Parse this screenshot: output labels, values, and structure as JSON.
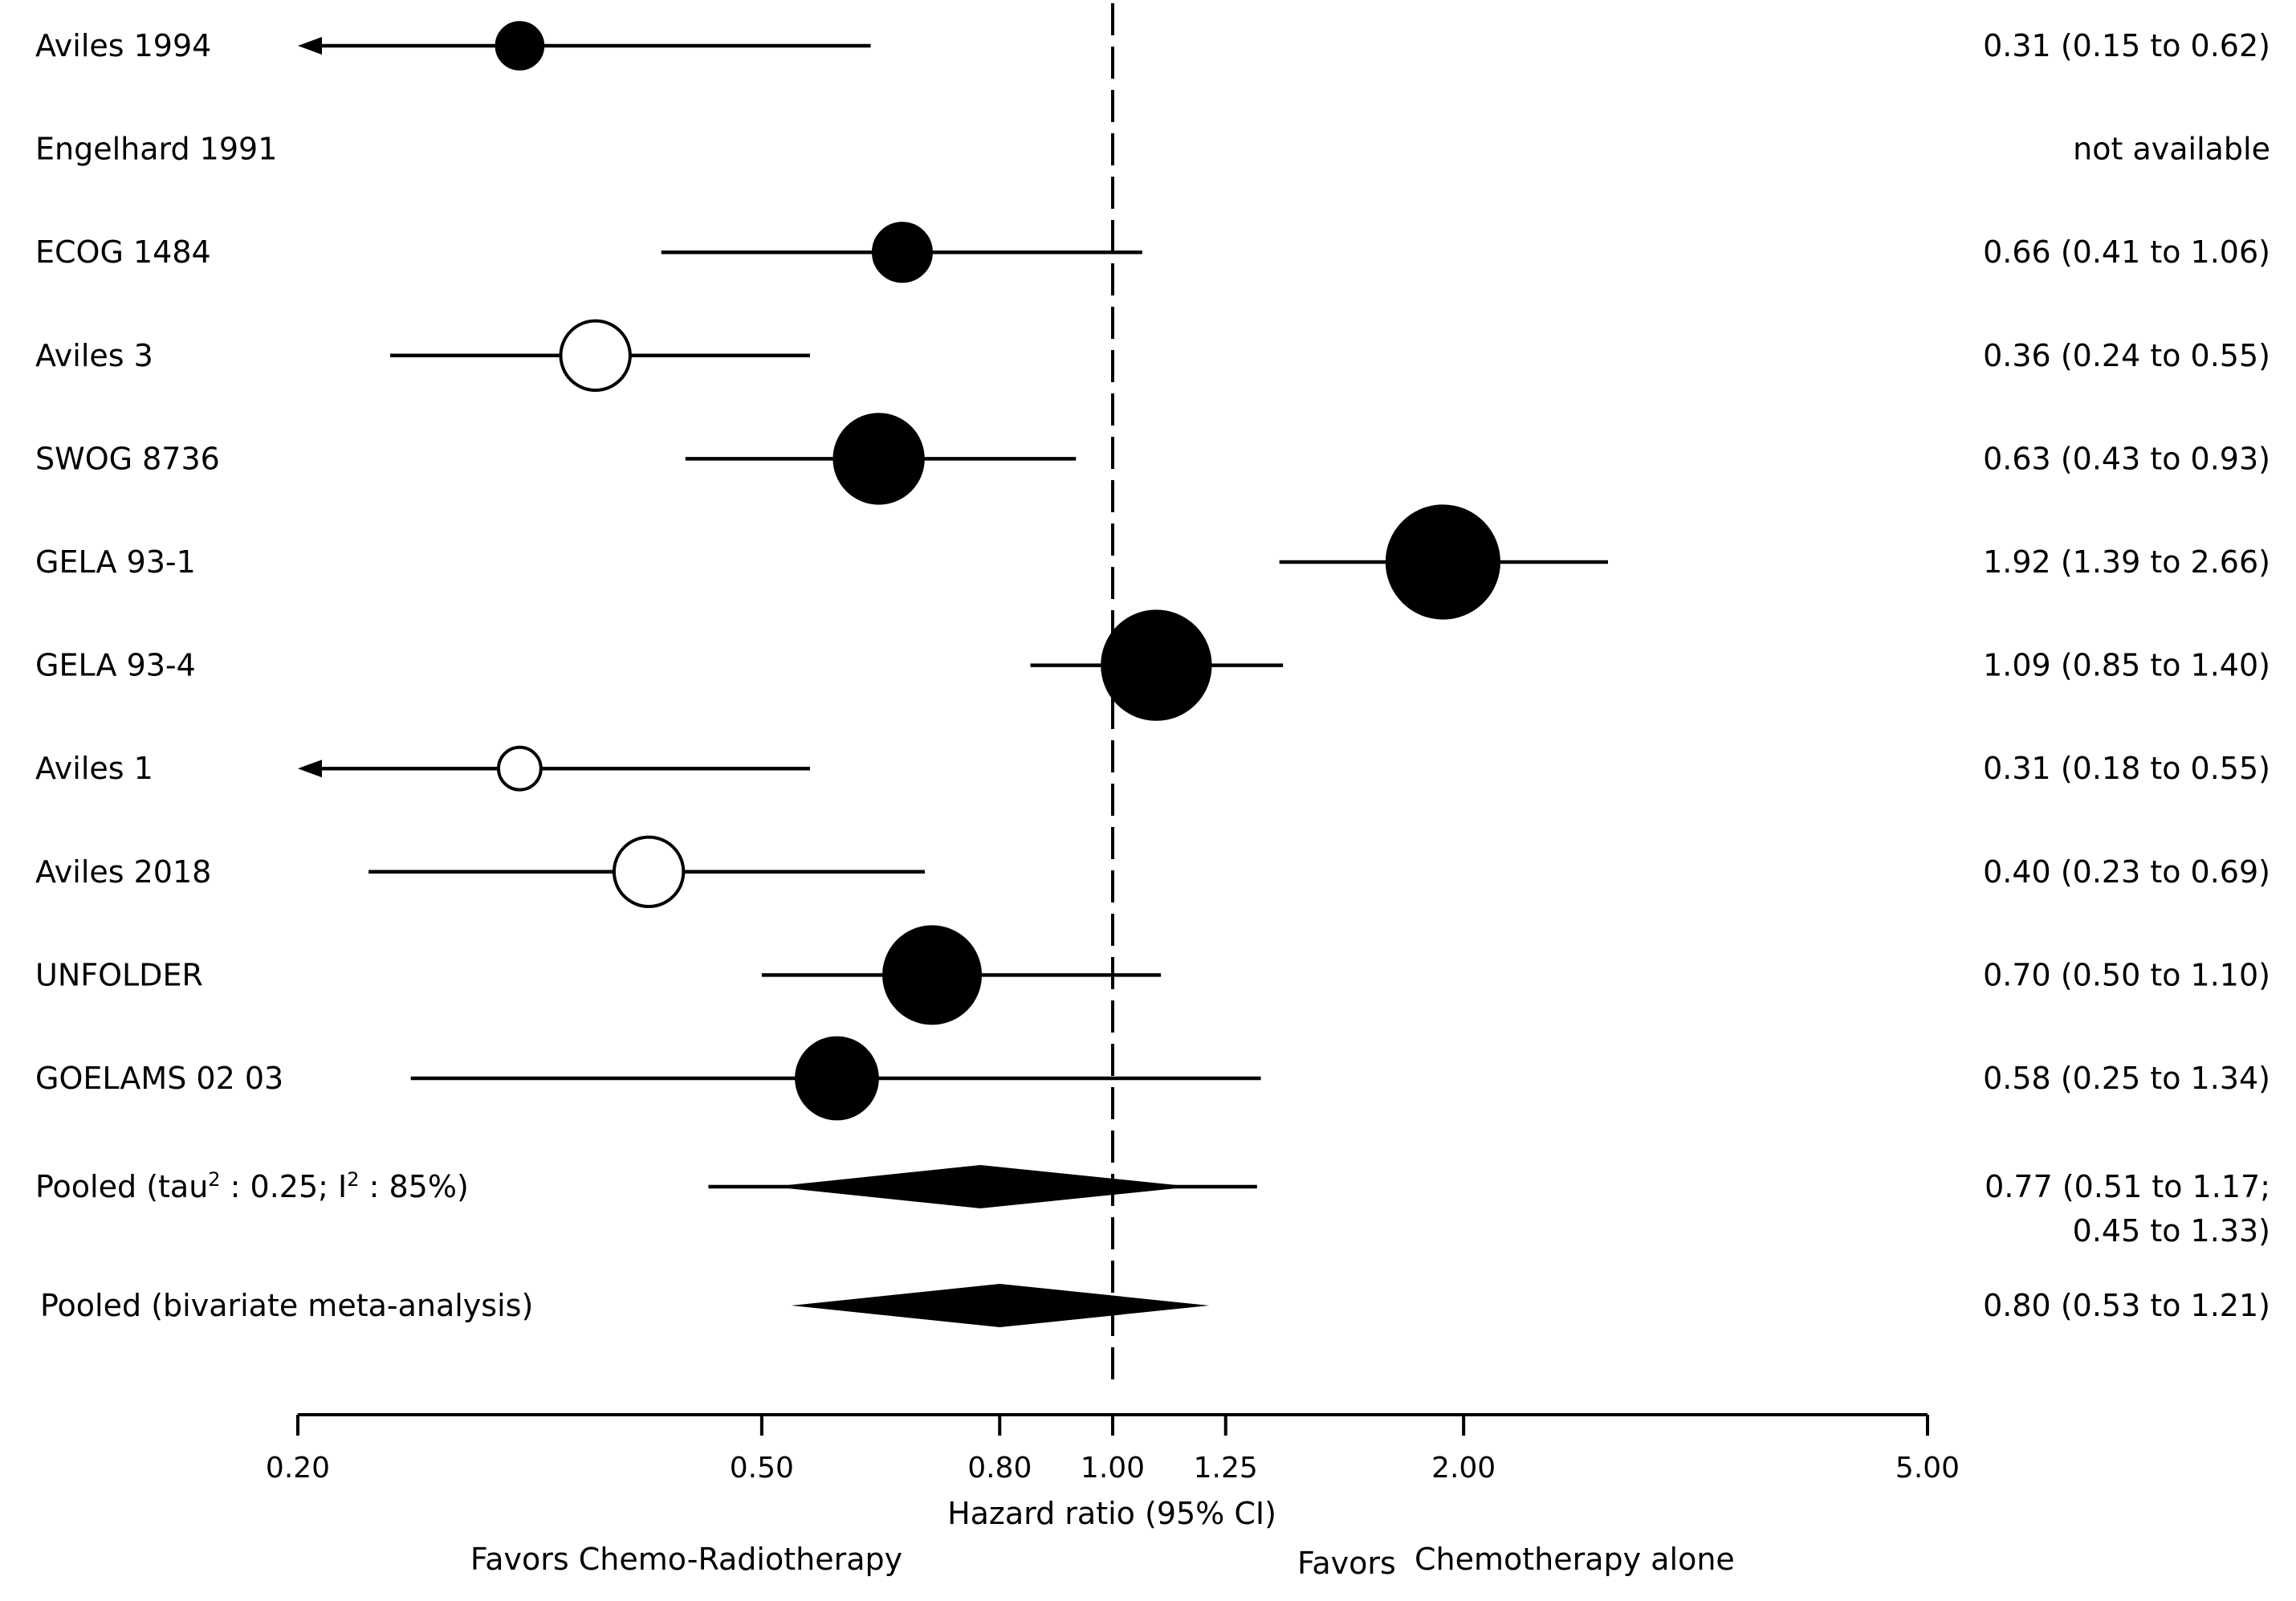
{
  "chart_data": {
    "type": "forest",
    "x_axis": {
      "scale": "log",
      "range": [
        0.2,
        5.0
      ],
      "ticks": [
        0.2,
        0.5,
        0.8,
        1.0,
        1.25,
        2.0,
        5.0
      ],
      "tick_labels": [
        "0.20",
        "0.50",
        "0.80",
        "1.00",
        "1.25",
        "2.00",
        "5.00"
      ],
      "title": "Hazard ratio (95% CI)",
      "reference_line": 1.0
    },
    "favors_left": "Favors Chemo-Radiotherapy",
    "favors_right_prefix": "Favors",
    "favors_right_suffix": "Chemotherapy alone",
    "studies": [
      {
        "name": "Aviles 1994",
        "hr": 0.31,
        "lo": 0.15,
        "hi": 0.62,
        "weight": 1.2,
        "filled": true,
        "arrow_left": true,
        "ci_text": "0.31 (0.15 to 0.62)"
      },
      {
        "name": "Engelhard 1991",
        "hr": null,
        "lo": null,
        "hi": null,
        "weight": 0,
        "filled": true,
        "arrow_left": false,
        "ci_text": "not available"
      },
      {
        "name": "ECOG 1484",
        "hr": 0.66,
        "lo": 0.41,
        "hi": 1.06,
        "weight": 1.5,
        "filled": true,
        "arrow_left": false,
        "ci_text": "0.66 (0.41 to 1.06)"
      },
      {
        "name": "Aviles 3",
        "hr": 0.36,
        "lo": 0.24,
        "hi": 0.55,
        "weight": 1.8,
        "filled": false,
        "arrow_left": false,
        "ci_text": "0.36 (0.24 to 0.55)"
      },
      {
        "name": "SWOG 8736",
        "hr": 0.63,
        "lo": 0.43,
        "hi": 0.93,
        "weight": 2.3,
        "filled": true,
        "arrow_left": false,
        "ci_text": "0.63 (0.43 to 0.93)"
      },
      {
        "name": "GELA 93-1",
        "hr": 1.92,
        "lo": 1.39,
        "hi": 2.66,
        "weight": 2.9,
        "filled": true,
        "arrow_left": false,
        "ci_text": "1.92 (1.39 to 2.66)"
      },
      {
        "name": "GELA 93-4",
        "hr": 1.09,
        "lo": 0.85,
        "hi": 1.4,
        "weight": 2.8,
        "filled": true,
        "arrow_left": false,
        "ci_text": "1.09 (0.85 to 1.40)"
      },
      {
        "name": "Aviles 1",
        "hr": 0.31,
        "lo": 0.18,
        "hi": 0.55,
        "weight": 1.1,
        "filled": false,
        "arrow_left": true,
        "ci_text": "0.31 (0.18 to 0.55)"
      },
      {
        "name": "Aviles 2018",
        "hr": 0.4,
        "lo": 0.23,
        "hi": 0.69,
        "weight": 1.8,
        "filled": false,
        "arrow_left": false,
        "ci_text": "0.40 (0.23 to 0.69)"
      },
      {
        "name": "UNFOLDER",
        "hr": 0.7,
        "lo": 0.5,
        "hi": 1.1,
        "weight": 2.5,
        "filled": true,
        "arrow_left": false,
        "ci_text": "0.70 (0.50 to 1.10)"
      },
      {
        "name": "GOELAMS 02 03",
        "hr": 0.58,
        "lo": 0.25,
        "hi": 1.34,
        "weight": 2.1,
        "filled": true,
        "arrow_left": false,
        "ci_text": "0.58 (0.25 to 1.34)"
      }
    ],
    "pooled": [
      {
        "name_prefix": "Pooled (tau",
        "sup1": "2",
        "name_mid": " : 0.25; I",
        "sup2": "2",
        "name_suffix": " : 85%)",
        "hr": 0.77,
        "lo": 0.51,
        "hi": 1.17,
        "pi_lo": 0.45,
        "pi_hi": 1.33,
        "ci_text_line1": "0.77 (0.51 to 1.17;",
        "ci_text_line2": "0.45 to 1.33)"
      },
      {
        "name": "Pooled (bivariate meta-analysis)",
        "hr": 0.8,
        "lo": 0.53,
        "hi": 1.21,
        "ci_text": "0.80 (0.53 to 1.21)"
      }
    ]
  }
}
